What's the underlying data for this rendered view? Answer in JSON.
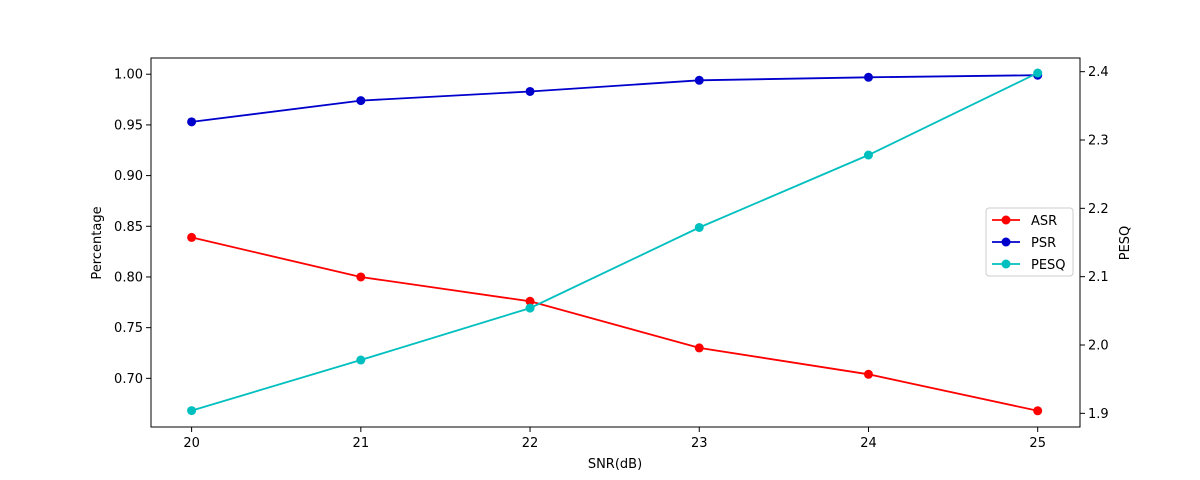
{
  "chart_data": {
    "type": "line",
    "xlabel": "SNR(dB)",
    "ylabel_left": "Percentage",
    "ylabel_right": "PESQ",
    "x": [
      20,
      21,
      22,
      23,
      24,
      25
    ],
    "xticks": [
      "20",
      "21",
      "22",
      "23",
      "24",
      "25"
    ],
    "xlim": [
      19.76,
      25.25
    ],
    "ylim_left": [
      0.652,
      1.016
    ],
    "ylim_right": [
      1.88,
      2.42
    ],
    "yticks_left": [
      "0.70",
      "0.75",
      "0.80",
      "0.85",
      "0.90",
      "0.95",
      "1.00"
    ],
    "yticks_right": [
      "1.9",
      "2.0",
      "2.1",
      "2.2",
      "2.3",
      "2.4"
    ],
    "grid": false,
    "legend_position": "center-right",
    "series": [
      {
        "name": "ASR",
        "axis": "left",
        "color": "#ff0000",
        "values": [
          0.839,
          0.8,
          0.776,
          0.73,
          0.704,
          0.668
        ]
      },
      {
        "name": "PSR",
        "axis": "left",
        "color": "#0000cc",
        "values": [
          0.953,
          0.974,
          0.983,
          0.994,
          0.997,
          0.999
        ]
      },
      {
        "name": "PESQ",
        "axis": "right",
        "color": "#00bfbf",
        "values": [
          1.904,
          1.978,
          2.054,
          2.172,
          2.278,
          2.398
        ]
      }
    ]
  }
}
